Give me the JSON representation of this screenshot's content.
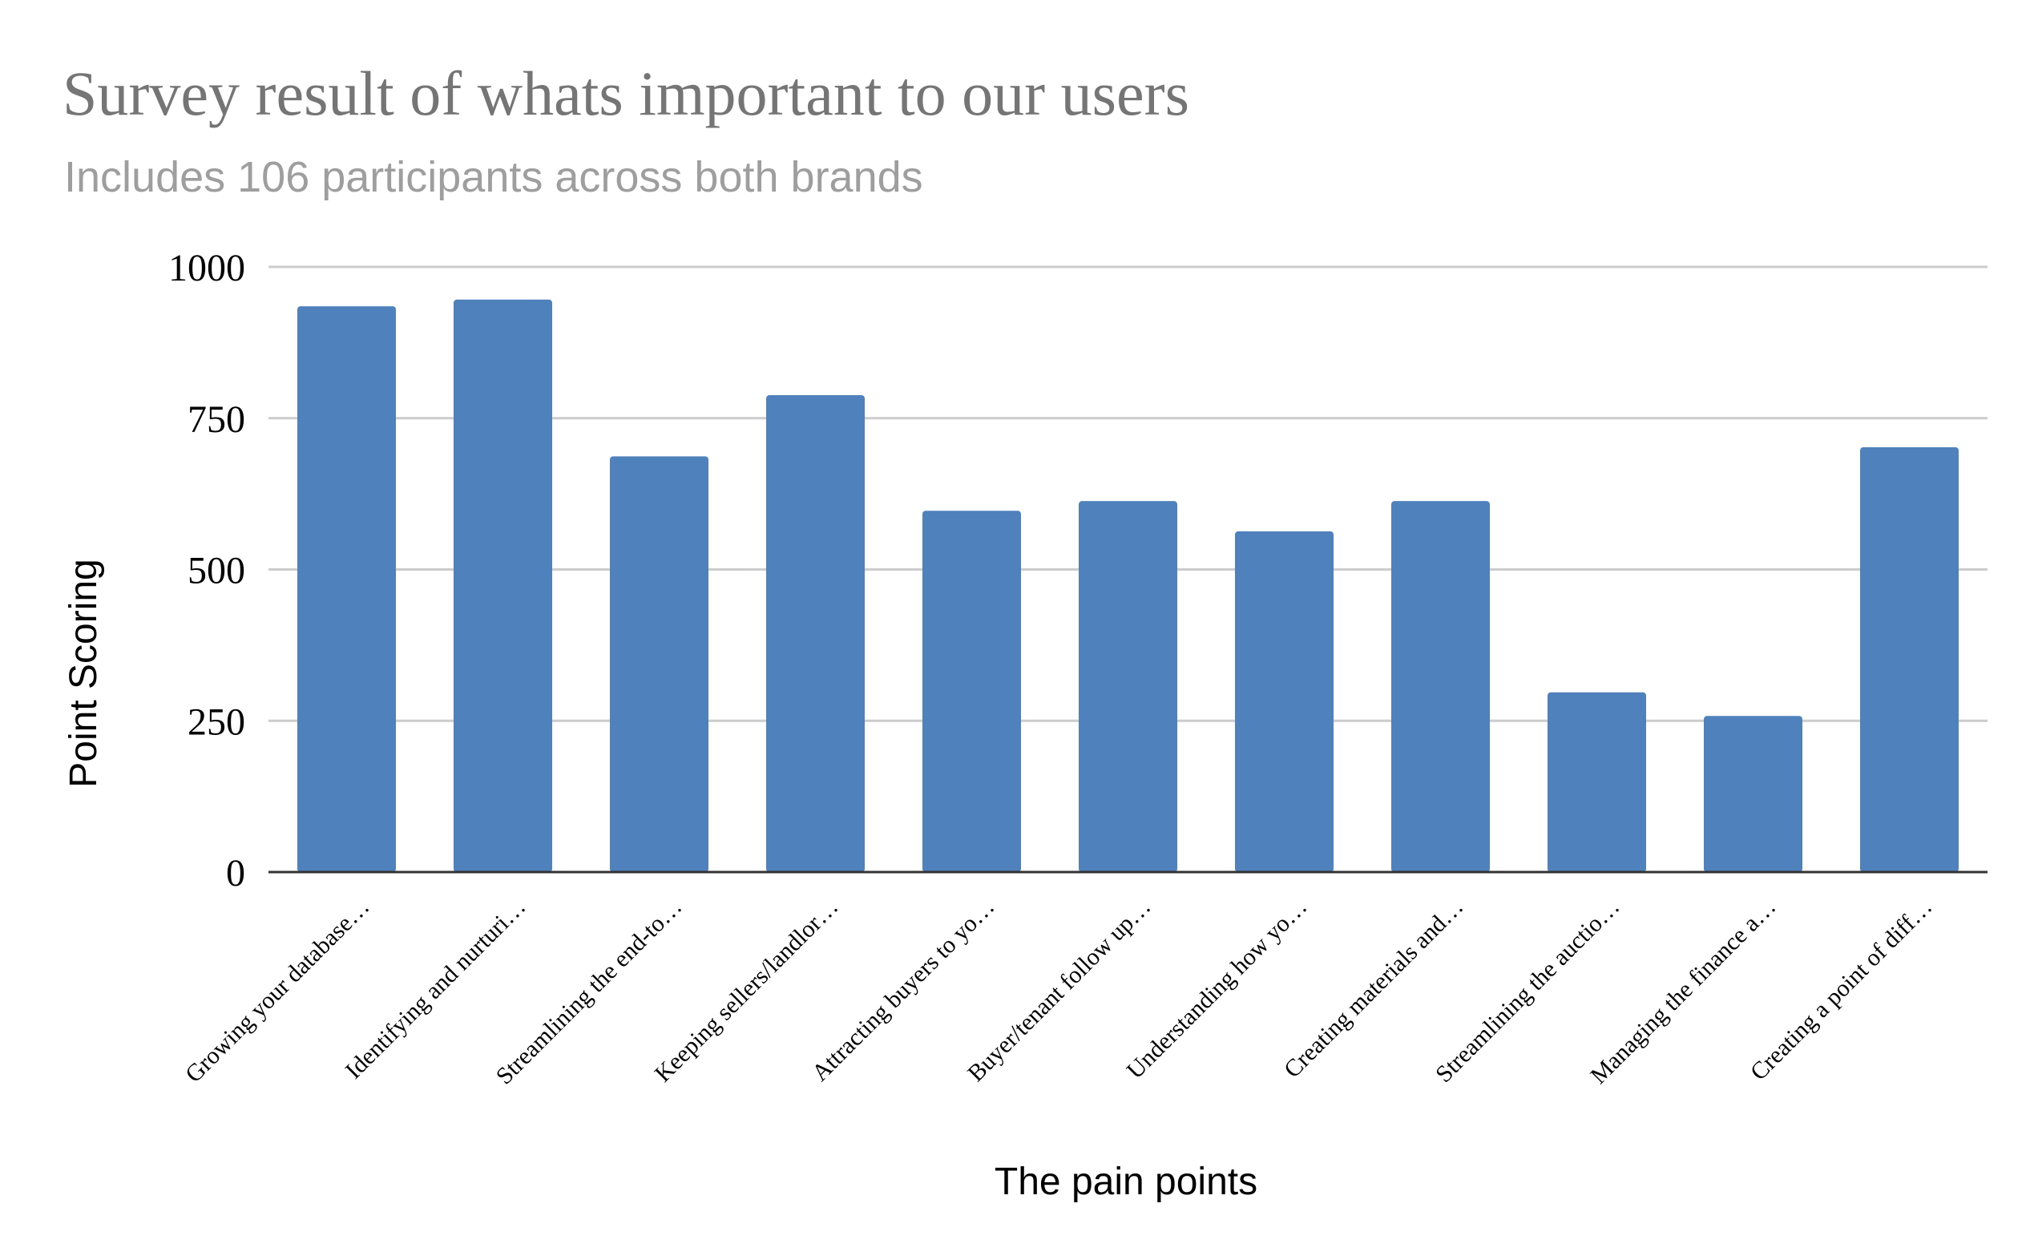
{
  "chart_data": {
    "type": "bar",
    "title": "Survey result of whats important to our users",
    "subtitle": "Includes 106 participants across both brands",
    "xlabel": "The pain points",
    "ylabel": "Point Scoring",
    "ylim": [
      0,
      1000
    ],
    "yticks": [
      "0",
      "250",
      "500",
      "750",
      "1000"
    ],
    "grid": true,
    "legend": "none",
    "bar_color": "#4f81bd",
    "categories": [
      "Growing your database…",
      "Identifying and nurturi…",
      "Streamlining the end-to…",
      "Keeping sellers/landlor…",
      "Attracting buyers to yo…",
      "Buyer/tenant follow up…",
      "Understanding how yo…",
      "Creating materials and…",
      "Streamlining the auctio…",
      "Managing the finance a…",
      "Creating a point of diff…"
    ],
    "values": [
      935,
      946,
      687,
      788,
      597,
      613,
      563,
      613,
      297,
      258,
      702
    ]
  }
}
